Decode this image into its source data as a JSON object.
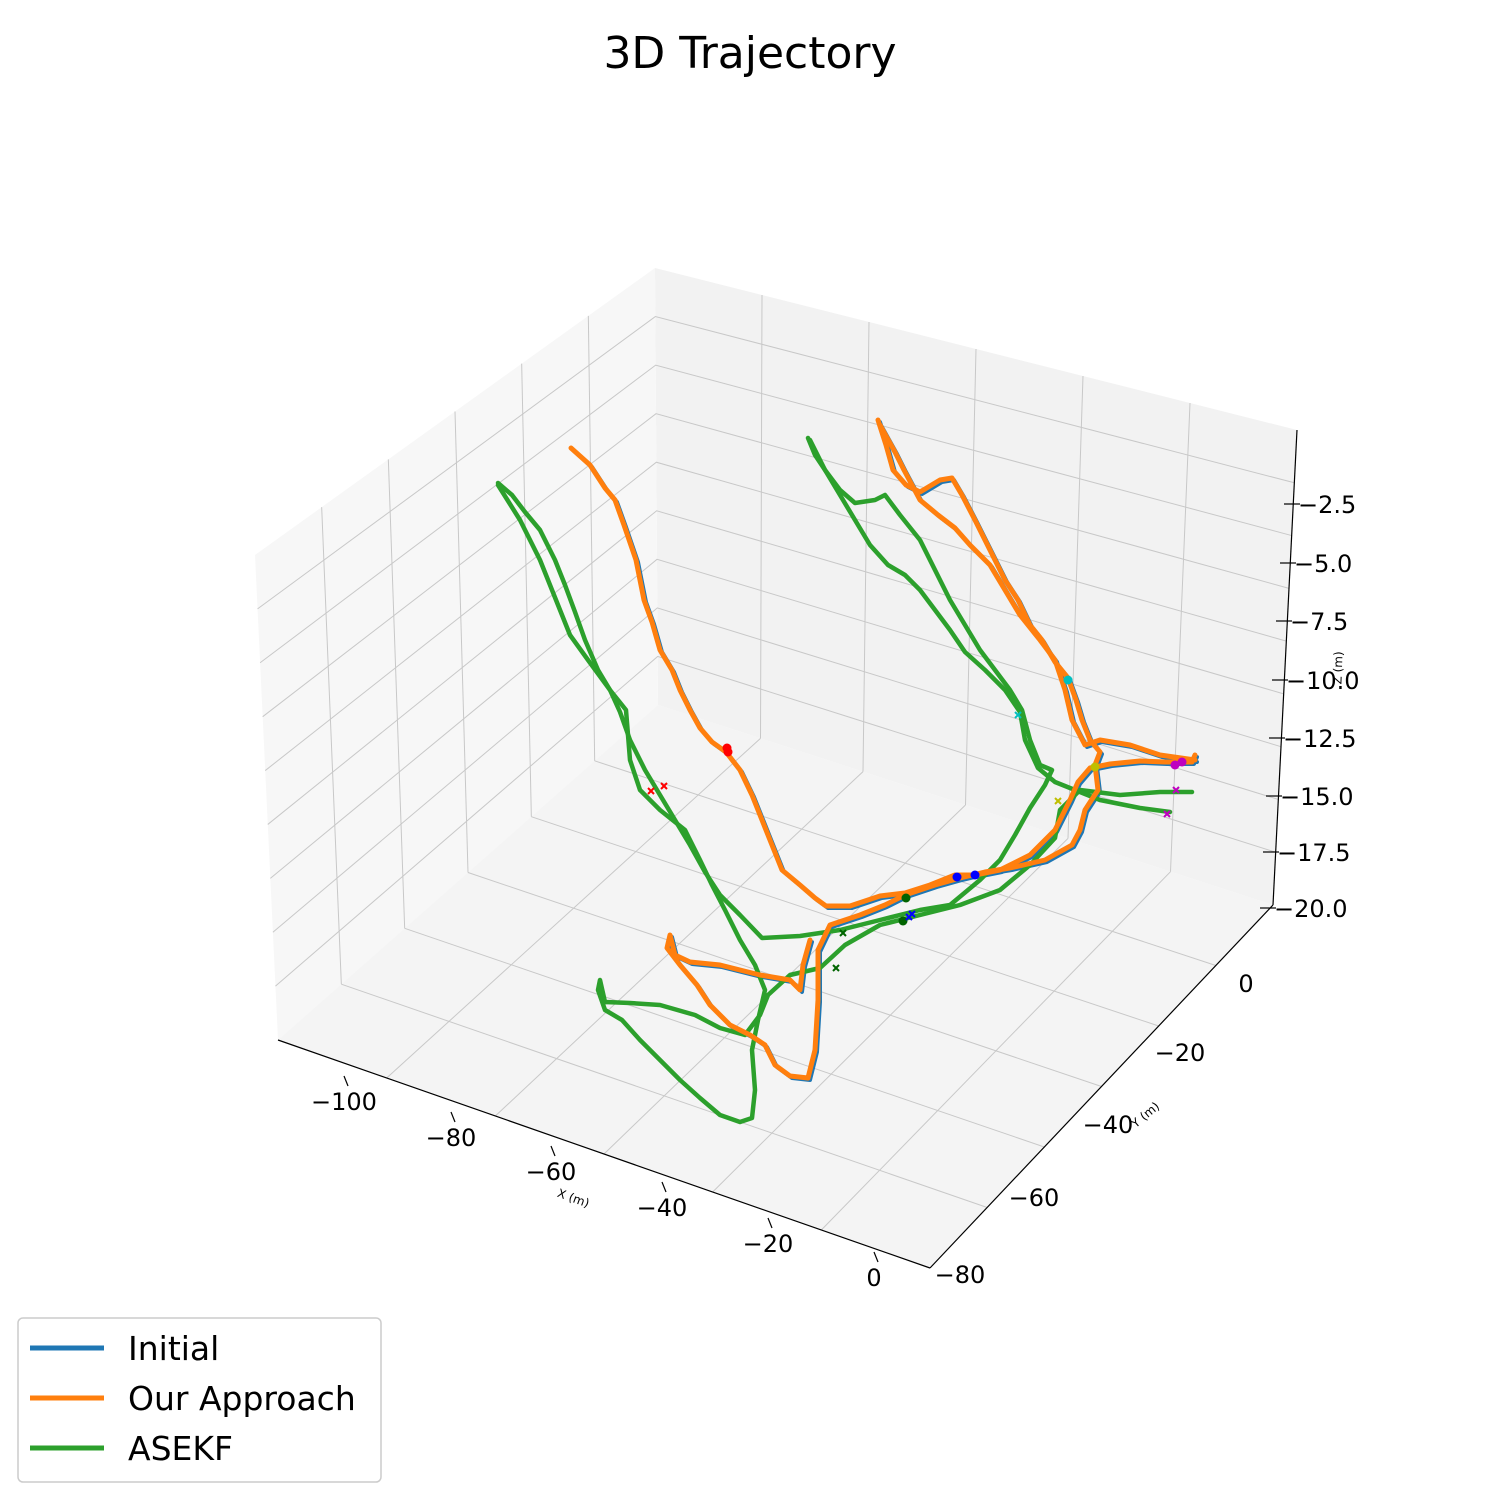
{
  "chart_data": {
    "type": "line",
    "projection": "3d",
    "title": "3D Trajectory",
    "xlabel": "X (m)",
    "ylabel": "Y (m)",
    "zlabel": "Z (m)",
    "x_ticks": [
      "−100",
      "−80",
      "−60",
      "−40",
      "−20",
      "0"
    ],
    "y_ticks": [
      "0",
      "−20",
      "−40",
      "−60",
      "−80"
    ],
    "z_ticks": [
      "−2.5",
      "−5.0",
      "−7.5",
      "−10.0",
      "−12.5",
      "−15.0",
      "−17.5",
      "−20.0"
    ],
    "legend_position": "bottom-left",
    "grid": true,
    "series": [
      {
        "name": "Initial",
        "color": "#1f77b4"
      },
      {
        "name": "Our Approach",
        "color": "#ff7f0e"
      },
      {
        "name": "ASEKF",
        "color": "#2ca02c"
      }
    ]
  }
}
